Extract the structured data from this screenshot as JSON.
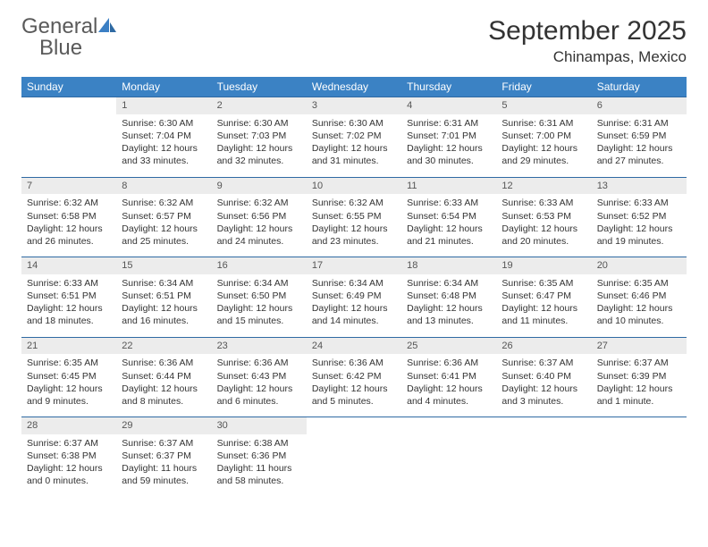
{
  "logo": {
    "word1": "General",
    "word2": "Blue"
  },
  "title": {
    "month": "September 2025",
    "location": "Chinampas, Mexico"
  },
  "colors": {
    "header_bg": "#3b82c4",
    "header_text": "#ffffff",
    "row_border": "#2f6aa3",
    "daynum_bg": "#ececec",
    "text": "#333333",
    "logo_gray": "#5a5a5a",
    "logo_blue": "#3b7fc4"
  },
  "weekdays": [
    "Sunday",
    "Monday",
    "Tuesday",
    "Wednesday",
    "Thursday",
    "Friday",
    "Saturday"
  ],
  "weeks": [
    [
      {
        "n": "",
        "sr": "",
        "ss": "",
        "dl": ""
      },
      {
        "n": "1",
        "sr": "Sunrise: 6:30 AM",
        "ss": "Sunset: 7:04 PM",
        "dl": "Daylight: 12 hours and 33 minutes."
      },
      {
        "n": "2",
        "sr": "Sunrise: 6:30 AM",
        "ss": "Sunset: 7:03 PM",
        "dl": "Daylight: 12 hours and 32 minutes."
      },
      {
        "n": "3",
        "sr": "Sunrise: 6:30 AM",
        "ss": "Sunset: 7:02 PM",
        "dl": "Daylight: 12 hours and 31 minutes."
      },
      {
        "n": "4",
        "sr": "Sunrise: 6:31 AM",
        "ss": "Sunset: 7:01 PM",
        "dl": "Daylight: 12 hours and 30 minutes."
      },
      {
        "n": "5",
        "sr": "Sunrise: 6:31 AM",
        "ss": "Sunset: 7:00 PM",
        "dl": "Daylight: 12 hours and 29 minutes."
      },
      {
        "n": "6",
        "sr": "Sunrise: 6:31 AM",
        "ss": "Sunset: 6:59 PM",
        "dl": "Daylight: 12 hours and 27 minutes."
      }
    ],
    [
      {
        "n": "7",
        "sr": "Sunrise: 6:32 AM",
        "ss": "Sunset: 6:58 PM",
        "dl": "Daylight: 12 hours and 26 minutes."
      },
      {
        "n": "8",
        "sr": "Sunrise: 6:32 AM",
        "ss": "Sunset: 6:57 PM",
        "dl": "Daylight: 12 hours and 25 minutes."
      },
      {
        "n": "9",
        "sr": "Sunrise: 6:32 AM",
        "ss": "Sunset: 6:56 PM",
        "dl": "Daylight: 12 hours and 24 minutes."
      },
      {
        "n": "10",
        "sr": "Sunrise: 6:32 AM",
        "ss": "Sunset: 6:55 PM",
        "dl": "Daylight: 12 hours and 23 minutes."
      },
      {
        "n": "11",
        "sr": "Sunrise: 6:33 AM",
        "ss": "Sunset: 6:54 PM",
        "dl": "Daylight: 12 hours and 21 minutes."
      },
      {
        "n": "12",
        "sr": "Sunrise: 6:33 AM",
        "ss": "Sunset: 6:53 PM",
        "dl": "Daylight: 12 hours and 20 minutes."
      },
      {
        "n": "13",
        "sr": "Sunrise: 6:33 AM",
        "ss": "Sunset: 6:52 PM",
        "dl": "Daylight: 12 hours and 19 minutes."
      }
    ],
    [
      {
        "n": "14",
        "sr": "Sunrise: 6:33 AM",
        "ss": "Sunset: 6:51 PM",
        "dl": "Daylight: 12 hours and 18 minutes."
      },
      {
        "n": "15",
        "sr": "Sunrise: 6:34 AM",
        "ss": "Sunset: 6:51 PM",
        "dl": "Daylight: 12 hours and 16 minutes."
      },
      {
        "n": "16",
        "sr": "Sunrise: 6:34 AM",
        "ss": "Sunset: 6:50 PM",
        "dl": "Daylight: 12 hours and 15 minutes."
      },
      {
        "n": "17",
        "sr": "Sunrise: 6:34 AM",
        "ss": "Sunset: 6:49 PM",
        "dl": "Daylight: 12 hours and 14 minutes."
      },
      {
        "n": "18",
        "sr": "Sunrise: 6:34 AM",
        "ss": "Sunset: 6:48 PM",
        "dl": "Daylight: 12 hours and 13 minutes."
      },
      {
        "n": "19",
        "sr": "Sunrise: 6:35 AM",
        "ss": "Sunset: 6:47 PM",
        "dl": "Daylight: 12 hours and 11 minutes."
      },
      {
        "n": "20",
        "sr": "Sunrise: 6:35 AM",
        "ss": "Sunset: 6:46 PM",
        "dl": "Daylight: 12 hours and 10 minutes."
      }
    ],
    [
      {
        "n": "21",
        "sr": "Sunrise: 6:35 AM",
        "ss": "Sunset: 6:45 PM",
        "dl": "Daylight: 12 hours and 9 minutes."
      },
      {
        "n": "22",
        "sr": "Sunrise: 6:36 AM",
        "ss": "Sunset: 6:44 PM",
        "dl": "Daylight: 12 hours and 8 minutes."
      },
      {
        "n": "23",
        "sr": "Sunrise: 6:36 AM",
        "ss": "Sunset: 6:43 PM",
        "dl": "Daylight: 12 hours and 6 minutes."
      },
      {
        "n": "24",
        "sr": "Sunrise: 6:36 AM",
        "ss": "Sunset: 6:42 PM",
        "dl": "Daylight: 12 hours and 5 minutes."
      },
      {
        "n": "25",
        "sr": "Sunrise: 6:36 AM",
        "ss": "Sunset: 6:41 PM",
        "dl": "Daylight: 12 hours and 4 minutes."
      },
      {
        "n": "26",
        "sr": "Sunrise: 6:37 AM",
        "ss": "Sunset: 6:40 PM",
        "dl": "Daylight: 12 hours and 3 minutes."
      },
      {
        "n": "27",
        "sr": "Sunrise: 6:37 AM",
        "ss": "Sunset: 6:39 PM",
        "dl": "Daylight: 12 hours and 1 minute."
      }
    ],
    [
      {
        "n": "28",
        "sr": "Sunrise: 6:37 AM",
        "ss": "Sunset: 6:38 PM",
        "dl": "Daylight: 12 hours and 0 minutes."
      },
      {
        "n": "29",
        "sr": "Sunrise: 6:37 AM",
        "ss": "Sunset: 6:37 PM",
        "dl": "Daylight: 11 hours and 59 minutes."
      },
      {
        "n": "30",
        "sr": "Sunrise: 6:38 AM",
        "ss": "Sunset: 6:36 PM",
        "dl": "Daylight: 11 hours and 58 minutes."
      },
      {
        "n": "",
        "sr": "",
        "ss": "",
        "dl": ""
      },
      {
        "n": "",
        "sr": "",
        "ss": "",
        "dl": ""
      },
      {
        "n": "",
        "sr": "",
        "ss": "",
        "dl": ""
      },
      {
        "n": "",
        "sr": "",
        "ss": "",
        "dl": ""
      }
    ]
  ]
}
